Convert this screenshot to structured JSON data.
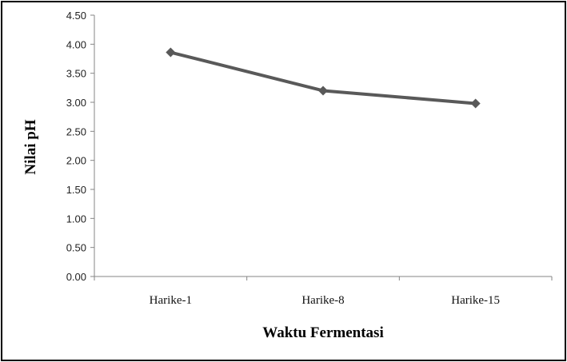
{
  "chart_data": {
    "type": "line",
    "categories": [
      "Harike-1",
      "Harike-8",
      "Harike-15"
    ],
    "series": [
      {
        "values": [
          3.86,
          3.2,
          2.98
        ],
        "color": "#595959",
        "marker": "diamond"
      }
    ],
    "xlabel": "Waktu Fermentasi",
    "ylabel": "Nilai pH",
    "ylim": [
      0,
      4.5
    ],
    "yticks": [
      "0.00",
      "0.50",
      "1.00",
      "1.50",
      "2.00",
      "2.50",
      "3.00",
      "3.50",
      "4.00",
      "4.50"
    ],
    "grid": false,
    "legend": "none"
  }
}
